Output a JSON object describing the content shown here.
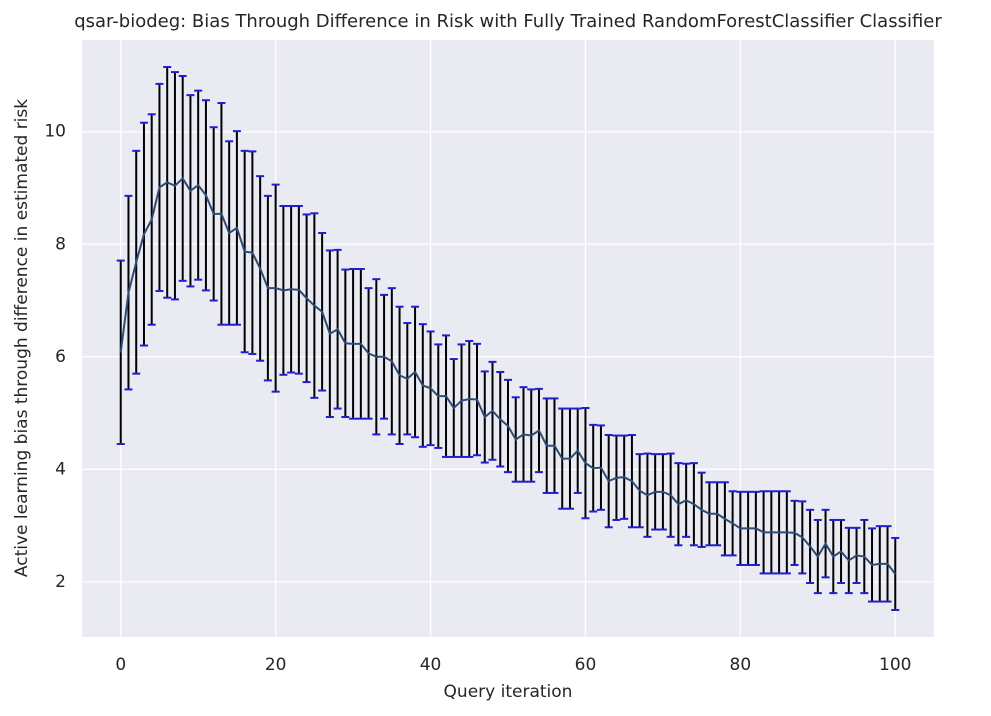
{
  "chart_data": {
    "type": "line",
    "title": "qsar-biodeg: Bias Through Difference in Risk with Fully Trained RandomForestClassifier Classifier",
    "xlabel": "Query iteration",
    "ylabel": "Active learning bias through difference in estimated risk",
    "x": [
      0,
      1,
      2,
      3,
      4,
      5,
      6,
      7,
      8,
      9,
      10,
      11,
      12,
      13,
      14,
      15,
      16,
      17,
      18,
      19,
      20,
      21,
      22,
      23,
      24,
      25,
      26,
      27,
      28,
      29,
      30,
      31,
      32,
      33,
      34,
      35,
      36,
      37,
      38,
      39,
      40,
      41,
      42,
      43,
      44,
      45,
      46,
      47,
      48,
      49,
      50,
      51,
      52,
      53,
      54,
      55,
      56,
      57,
      58,
      59,
      60,
      61,
      62,
      63,
      64,
      65,
      66,
      67,
      68,
      69,
      70,
      71,
      72,
      73,
      74,
      75,
      76,
      77,
      78,
      79,
      80,
      81,
      82,
      83,
      84,
      85,
      86,
      87,
      88,
      89,
      90,
      91,
      92,
      93,
      94,
      95,
      96,
      97,
      98,
      99,
      100
    ],
    "series": [
      {
        "color": "#2d4b74",
        "error_color": "#000000",
        "cap_color": "#1f1fd0",
        "values": [
          6.08,
          7.14,
          7.68,
          8.18,
          8.44,
          9.01,
          9.1,
          9.04,
          9.17,
          8.95,
          9.05,
          8.87,
          8.54,
          8.54,
          8.2,
          8.29,
          7.87,
          7.85,
          7.57,
          7.22,
          7.22,
          7.18,
          7.2,
          7.19,
          7.04,
          6.91,
          6.8,
          6.41,
          6.49,
          6.24,
          6.23,
          6.23,
          6.06,
          6.0,
          6.0,
          5.92,
          5.67,
          5.61,
          5.73,
          5.49,
          5.44,
          5.3,
          5.3,
          5.09,
          5.22,
          5.25,
          5.24,
          4.93,
          5.04,
          4.89,
          4.77,
          4.53,
          4.62,
          4.6,
          4.69,
          4.42,
          4.42,
          4.19,
          4.19,
          4.33,
          4.11,
          4.02,
          4.03,
          3.79,
          3.85,
          3.86,
          3.79,
          3.62,
          3.54,
          3.6,
          3.6,
          3.54,
          3.38,
          3.45,
          3.38,
          3.28,
          3.21,
          3.21,
          3.12,
          3.04,
          2.95,
          2.95,
          2.95,
          2.88,
          2.88,
          2.88,
          2.88,
          2.87,
          2.79,
          2.63,
          2.45,
          2.68,
          2.45,
          2.54,
          2.38,
          2.47,
          2.45,
          2.3,
          2.32,
          2.32,
          2.14
        ],
        "errors": [
          1.63,
          1.72,
          1.98,
          1.98,
          1.87,
          1.84,
          2.05,
          2.02,
          1.82,
          1.7,
          1.68,
          1.69,
          1.54,
          1.97,
          1.63,
          1.72,
          1.79,
          1.8,
          1.64,
          1.64,
          1.84,
          1.5,
          1.48,
          1.49,
          1.49,
          1.64,
          1.4,
          1.48,
          1.41,
          1.31,
          1.33,
          1.33,
          1.16,
          1.38,
          1.1,
          1.3,
          1.22,
          0.99,
          1.16,
          1.09,
          1.01,
          0.92,
          1.08,
          0.87,
          1.0,
          1.03,
          0.99,
          0.81,
          0.87,
          0.84,
          0.82,
          0.75,
          0.84,
          0.82,
          0.74,
          0.84,
          0.84,
          0.89,
          0.89,
          0.75,
          0.98,
          0.77,
          0.75,
          0.82,
          0.75,
          0.74,
          0.82,
          0.65,
          0.74,
          0.67,
          0.67,
          0.74,
          0.73,
          0.65,
          0.73,
          0.66,
          0.56,
          0.56,
          0.65,
          0.57,
          0.65,
          0.65,
          0.65,
          0.73,
          0.73,
          0.73,
          0.73,
          0.57,
          0.64,
          0.65,
          0.65,
          0.6,
          0.65,
          0.56,
          0.58,
          0.49,
          0.65,
          0.65,
          0.67,
          0.67,
          0.64
        ]
      }
    ],
    "xlim": [
      -5,
      105
    ],
    "ylim": [
      1.02,
      11.63
    ],
    "xticks": [
      0,
      20,
      40,
      60,
      80,
      100
    ],
    "yticks": [
      2,
      4,
      6,
      8,
      10
    ],
    "grid": true,
    "background": "#eaeaf2"
  }
}
